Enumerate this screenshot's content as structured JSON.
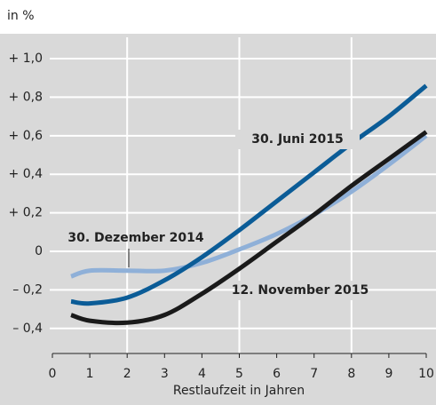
{
  "chart_data": {
    "type": "line",
    "y_unit_label": "in %",
    "xlabel": "Restlaufzeit in Jahren",
    "x": [
      0.5,
      1,
      2,
      3,
      4,
      5,
      6,
      7,
      8,
      9,
      10
    ],
    "series": [
      {
        "name": "30. Dezember 2014",
        "color": "#8fb0d8",
        "values": [
          -0.13,
          -0.1,
          -0.1,
          -0.1,
          -0.06,
          0.01,
          0.09,
          0.19,
          0.31,
          0.45,
          0.6
        ]
      },
      {
        "name": "30. Juni 2015",
        "color": "#0b5c97",
        "values": [
          -0.26,
          -0.27,
          -0.24,
          -0.15,
          -0.03,
          0.11,
          0.26,
          0.41,
          0.56,
          0.7,
          0.86
        ]
      },
      {
        "name": "12. November 2015",
        "color": "#1a1a1a",
        "values": [
          -0.33,
          -0.36,
          -0.37,
          -0.33,
          -0.22,
          -0.09,
          0.05,
          0.19,
          0.34,
          0.48,
          0.62
        ]
      }
    ],
    "xlim": [
      0,
      10
    ],
    "xticks": [
      0,
      1,
      2,
      3,
      4,
      5,
      6,
      7,
      8,
      9,
      10
    ],
    "xgrid": [
      2,
      5,
      8
    ],
    "ylim": [
      -0.53,
      1.12
    ],
    "yticks": [
      {
        "value": 1.0,
        "label": "+ 1,0"
      },
      {
        "value": 0.8,
        "label": "+ 0,8"
      },
      {
        "value": 0.6,
        "label": "+ 0,6"
      },
      {
        "value": 0.4,
        "label": "+ 0,4"
      },
      {
        "value": 0.2,
        "label": "+ 0,2"
      },
      {
        "value": 0,
        "label": "0"
      },
      {
        "value": -0.2,
        "label": "– 0,2"
      },
      {
        "value": -0.4,
        "label": "– 0,4"
      }
    ],
    "grid": true
  }
}
